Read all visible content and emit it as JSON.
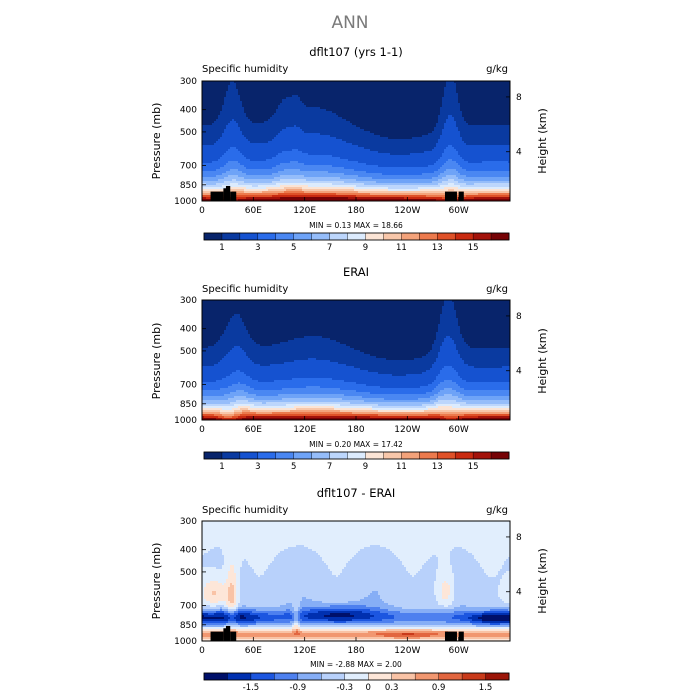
{
  "page_title": "ANN",
  "colors": {
    "seq": [
      "#08246b",
      "#0a3aa0",
      "#1552d0",
      "#2a6cea",
      "#4a87f2",
      "#6ea3f7",
      "#95bdfa",
      "#bcd6fc",
      "#dcebfd",
      "#fbe4d5",
      "#f8c7aa",
      "#f3a27a",
      "#ec7a4d",
      "#df5128",
      "#c92a10",
      "#a3120a",
      "#760205"
    ],
    "diff": [
      "#00106a",
      "#0030b0",
      "#1c56e0",
      "#4d80ef",
      "#86aef6",
      "#b8d1fb",
      "#e1eefd",
      "#fde6d8",
      "#f9c3a6",
      "#f19770",
      "#e2663f",
      "#c93a1a",
      "#9c1508"
    ],
    "topo": "#000000"
  },
  "chart_data": [
    {
      "type": "heatmap",
      "name": "model",
      "title": "dflt107 (yrs 1-1)",
      "left_label": "Specific humidity",
      "right_label": "g/kg",
      "ylabel": "Pressure (mb)",
      "y2label": "Height (km)",
      "yticks": [
        300,
        400,
        500,
        700,
        850,
        1000
      ],
      "ylim": [
        300,
        1000
      ],
      "y2ticks": [
        {
          "value": 8,
          "pressure": 352
        },
        {
          "value": 4,
          "pressure": 610
        }
      ],
      "xticks": [
        "0",
        "60E",
        "120E",
        "180",
        "120W",
        "60W"
      ],
      "xtick_lon": [
        0,
        60,
        120,
        180,
        240,
        300
      ],
      "xlim": [
        0,
        360
      ],
      "stats": "MIN =    0.13   MAX =   18.66",
      "colorbar_ticks": [
        "1",
        "3",
        "5",
        "7",
        "9",
        "11",
        "13",
        "15"
      ],
      "colorbar_levels": [
        0.5,
        1,
        2,
        3,
        4,
        5,
        6,
        7,
        8,
        9,
        10,
        11,
        12,
        13,
        14,
        15,
        16
      ],
      "min": 0.13,
      "max": 18.66,
      "topography": [
        {
          "lon0": 10,
          "lon1": 25,
          "p": 910
        },
        {
          "lon0": 25,
          "lon1": 30,
          "p": 880
        },
        {
          "lon0": 28,
          "lon1": 33,
          "p": 860
        },
        {
          "lon0": 33,
          "lon1": 40,
          "p": 910
        },
        {
          "lon0": 284,
          "lon1": 298,
          "p": 910
        },
        {
          "lon0": 300,
          "lon1": 306,
          "p": 910
        }
      ]
    },
    {
      "type": "heatmap",
      "name": "obs",
      "title": "ERAI",
      "left_label": "Specific humidity",
      "right_label": "g/kg",
      "ylabel": "Pressure (mb)",
      "y2label": "Height (km)",
      "yticks": [
        300,
        400,
        500,
        700,
        850,
        1000
      ],
      "ylim": [
        300,
        1000
      ],
      "y2ticks": [
        {
          "value": 8,
          "pressure": 352
        },
        {
          "value": 4,
          "pressure": 610
        }
      ],
      "xticks": [
        "0",
        "60E",
        "120E",
        "180",
        "120W",
        "60W"
      ],
      "xtick_lon": [
        0,
        60,
        120,
        180,
        240,
        300
      ],
      "xlim": [
        0,
        360
      ],
      "stats": "MIN =    0.20   MAX =   17.42",
      "colorbar_ticks": [
        "1",
        "3",
        "5",
        "7",
        "9",
        "11",
        "13",
        "15"
      ],
      "colorbar_levels": [
        0.5,
        1,
        2,
        3,
        4,
        5,
        6,
        7,
        8,
        9,
        10,
        11,
        12,
        13,
        14,
        15,
        16
      ],
      "min": 0.2,
      "max": 17.42,
      "topography": []
    },
    {
      "type": "heatmap",
      "name": "diff",
      "title": "dflt107 - ERAI",
      "left_label": "Specific humidity",
      "right_label": "g/kg",
      "ylabel": "Pressure (mb)",
      "y2label": "Height (km)",
      "yticks": [
        300,
        400,
        500,
        700,
        850,
        1000
      ],
      "ylim": [
        300,
        1000
      ],
      "y2ticks": [
        {
          "value": 8,
          "pressure": 352
        },
        {
          "value": 4,
          "pressure": 610
        }
      ],
      "xticks": [
        "0",
        "60E",
        "120E",
        "180",
        "120W",
        "60W"
      ],
      "xtick_lon": [
        0,
        60,
        120,
        180,
        240,
        300
      ],
      "xlim": [
        0,
        360
      ],
      "stats": "MIN =   -2.88   MAX =    2.00",
      "colorbar_ticks": [
        "-1.5",
        "-0.9",
        "-0.3",
        "0",
        "0.3",
        "0.9",
        "1.5"
      ],
      "colorbar_levels": [
        -1.8,
        -1.5,
        -1.2,
        -0.9,
        -0.6,
        -0.3,
        0,
        0.3,
        0.6,
        0.9,
        1.2,
        1.5,
        1.8
      ],
      "min": -2.88,
      "max": 2.0,
      "topography": [
        {
          "lon0": 10,
          "lon1": 25,
          "p": 910
        },
        {
          "lon0": 25,
          "lon1": 30,
          "p": 880
        },
        {
          "lon0": 28,
          "lon1": 33,
          "p": 860
        },
        {
          "lon0": 33,
          "lon1": 40,
          "p": 910
        },
        {
          "lon0": 284,
          "lon1": 298,
          "p": 910
        },
        {
          "lon0": 300,
          "lon1": 306,
          "p": 910
        }
      ]
    }
  ]
}
